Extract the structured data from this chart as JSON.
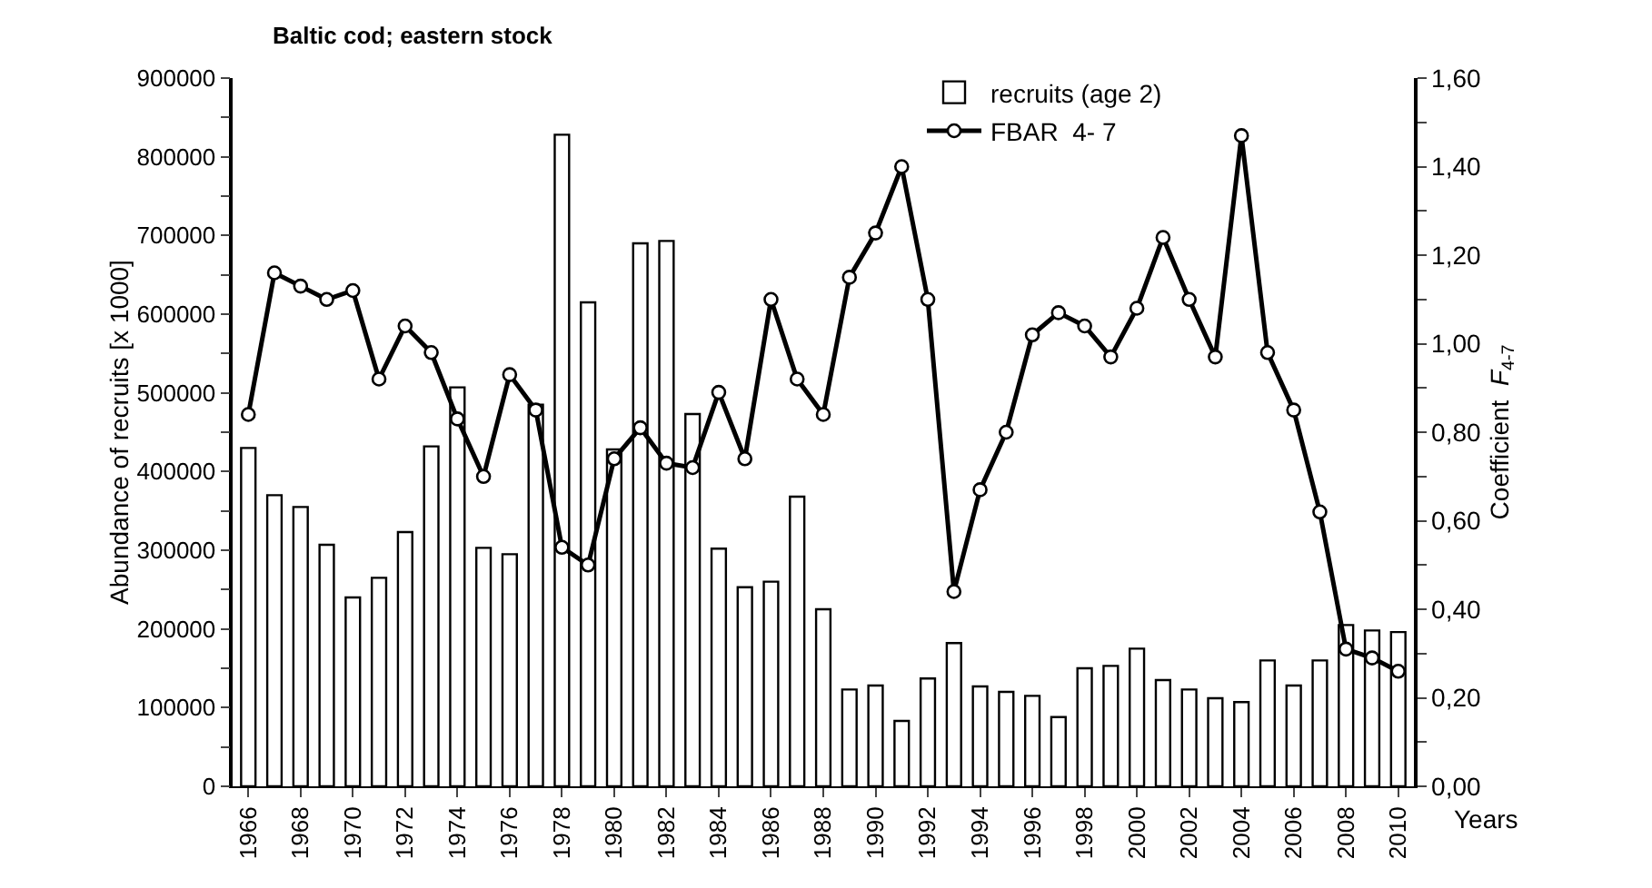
{
  "chart_data": {
    "type": "bar",
    "title": "Baltic cod; eastern stock",
    "xlabel": "Years",
    "ylabel": "Abundance of recruits [x 1000]",
    "y2label": "Coefficient  F$_{4-7}$",
    "categories": [
      "1966",
      null,
      "1968",
      null,
      "1970",
      null,
      "1972",
      null,
      "1974",
      null,
      "1976",
      null,
      "1978",
      null,
      "1980",
      null,
      "1982",
      null,
      "1984",
      null,
      "1986",
      null,
      "1988",
      null,
      "1990",
      null,
      "1992",
      null,
      "1994",
      null,
      "1996",
      null,
      "1998",
      null,
      "2000",
      null,
      "2002",
      null,
      "2004",
      null,
      "2006",
      null,
      "2008",
      null,
      "2010"
    ],
    "series": [
      {
        "name": "recruits (age 2)",
        "color": "#ffffff",
        "values": [
          430000,
          370000,
          355000,
          307000,
          240000,
          265000,
          323000,
          432000,
          507000,
          303000,
          295000,
          485000,
          828000,
          615000,
          428000,
          690000,
          693000,
          473000,
          302000,
          253000,
          260000,
          368000,
          225000,
          123000,
          128000,
          83000,
          137000,
          182000,
          127000,
          120000,
          115000,
          88000,
          150000,
          153000,
          175000,
          135000,
          123000,
          112000,
          107000,
          160000,
          128000,
          160000,
          205000,
          198000,
          196000
        ]
      },
      {
        "name": "FBAR  4- 7",
        "type": "line",
        "axis": "y2",
        "color": "#000000",
        "values": [
          0.84,
          1.16,
          1.13,
          1.1,
          1.12,
          0.92,
          1.04,
          0.98,
          0.83,
          0.7,
          0.93,
          0.85,
          0.54,
          0.5,
          0.74,
          0.81,
          0.73,
          0.72,
          0.89,
          0.74,
          1.1,
          0.92,
          0.84,
          1.15,
          1.25,
          1.4,
          1.1,
          0.44,
          0.67,
          0.8,
          1.02,
          1.07,
          1.04,
          0.97,
          1.08,
          1.24,
          1.1,
          0.97,
          1.47,
          0.98,
          0.85,
          0.62,
          0.31,
          0.29,
          0.26
        ]
      }
    ],
    "ylim": [
      0,
      900000
    ],
    "yticks": [
      0,
      {
        "value": 50000,
        "label": null
      },
      100000,
      {
        "value": 150000,
        "label": null
      },
      200000,
      {
        "value": 250000,
        "label": null
      },
      300000,
      {
        "value": 350000,
        "label": null
      },
      400000,
      {
        "value": 450000,
        "label": null
      },
      500000,
      {
        "value": 550000,
        "label": null
      },
      600000,
      {
        "value": 650000,
        "label": null
      },
      700000,
      {
        "value": 750000,
        "label": null
      },
      800000,
      {
        "value": 850000,
        "label": null
      },
      900000
    ],
    "y2lim": [
      0,
      1.6
    ],
    "y2ticks": [
      {
        "value": 0,
        "label": "0,00"
      },
      {
        "value": 0.1,
        "label": null
      },
      {
        "value": 0.2,
        "label": "0,20"
      },
      {
        "value": 0.3,
        "label": null
      },
      {
        "value": 0.4,
        "label": "0,40"
      },
      {
        "value": 0.5,
        "label": null
      },
      {
        "value": 0.6,
        "label": "0,60"
      },
      {
        "value": 0.7,
        "label": null
      },
      {
        "value": 0.8,
        "label": "0,80"
      },
      {
        "value": 0.9,
        "label": null
      },
      {
        "value": 1.0,
        "label": "1,00"
      },
      {
        "value": 1.1,
        "label": null
      },
      {
        "value": 1.2,
        "label": "1,20"
      },
      {
        "value": 1.3,
        "label": null
      },
      {
        "value": 1.4,
        "label": "1,40"
      },
      {
        "value": 1.5,
        "label": null
      },
      {
        "value": 1.6,
        "label": "1,60"
      }
    ],
    "legend": "top right",
    "marker": "circle",
    "line_style": "solid",
    "grid": false
  }
}
